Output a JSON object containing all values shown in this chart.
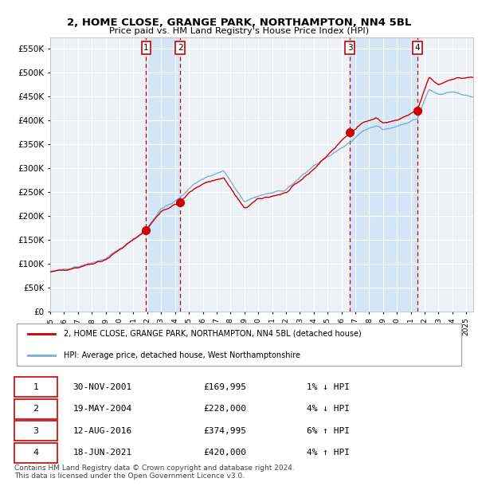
{
  "title": "2, HOME CLOSE, GRANGE PARK, NORTHAMPTON, NN4 5BL",
  "subtitle": "Price paid vs. HM Land Registry's House Price Index (HPI)",
  "ylim": [
    0,
    575000
  ],
  "yticks": [
    0,
    50000,
    100000,
    150000,
    200000,
    250000,
    300000,
    350000,
    400000,
    450000,
    500000,
    550000
  ],
  "xlim_start": 1995.0,
  "xlim_end": 2025.5,
  "background_color": "#ffffff",
  "plot_bg_color": "#eef2f7",
  "grid_color": "#ffffff",
  "hpi_line_color": "#7bafd4",
  "price_line_color": "#cc0000",
  "sale_marker_color": "#cc0000",
  "dashed_line_color": "#cc0000",
  "span_color": "#d0e4f5",
  "legend_label_price": "2, HOME CLOSE, GRANGE PARK, NORTHAMPTON, NN4 5BL (detached house)",
  "legend_label_hpi": "HPI: Average price, detached house, West Northamptonshire",
  "footer": "Contains HM Land Registry data © Crown copyright and database right 2024.\nThis data is licensed under the Open Government Licence v3.0.",
  "sales": [
    {
      "num": 1,
      "date_year": 2001.92,
      "price": 169995
    },
    {
      "num": 2,
      "date_year": 2004.38,
      "price": 228000
    },
    {
      "num": 3,
      "date_year": 2016.62,
      "price": 374995
    },
    {
      "num": 4,
      "date_year": 2021.46,
      "price": 420000
    }
  ],
  "table_rows": [
    {
      "num": 1,
      "date": "30-NOV-2001",
      "price": "£169,995",
      "hpi": "1% ↓ HPI"
    },
    {
      "num": 2,
      "date": "19-MAY-2004",
      "price": "£228,000",
      "hpi": "4% ↓ HPI"
    },
    {
      "num": 3,
      "date": "12-AUG-2016",
      "price": "£374,995",
      "hpi": "6% ↑ HPI"
    },
    {
      "num": 4,
      "date": "18-JUN-2021",
      "price": "£420,000",
      "hpi": "4% ↑ HPI"
    }
  ],
  "price_key_years": [
    1995,
    1997,
    1999,
    2001,
    2001.92,
    2003,
    2004.38,
    2005,
    2006,
    2007.5,
    2009,
    2010,
    2012,
    2014,
    2016.62,
    2017.5,
    2018.5,
    2019,
    2020,
    2021.46,
    2022.3,
    2023,
    2024,
    2025.4
  ],
  "price_key_vals": [
    82000,
    92000,
    108000,
    150000,
    169995,
    210000,
    228000,
    248000,
    268000,
    280000,
    215000,
    235000,
    248000,
    298000,
    374995,
    395000,
    405000,
    395000,
    400000,
    420000,
    490000,
    475000,
    488000,
    490000
  ],
  "hpi_key_years": [
    1995,
    1997,
    1999,
    2001,
    2002,
    2003,
    2004.38,
    2005,
    2006,
    2007.5,
    2009,
    2010,
    2012,
    2014,
    2016.62,
    2017.5,
    2018.5,
    2019,
    2020,
    2021.46,
    2022.3,
    2023,
    2024,
    2025.4
  ],
  "hpi_key_vals": [
    82000,
    93000,
    110000,
    150000,
    175000,
    215000,
    237000,
    258000,
    278000,
    295000,
    230000,
    242000,
    255000,
    305000,
    353000,
    378000,
    390000,
    380000,
    388000,
    403000,
    465000,
    455000,
    460000,
    450000
  ]
}
